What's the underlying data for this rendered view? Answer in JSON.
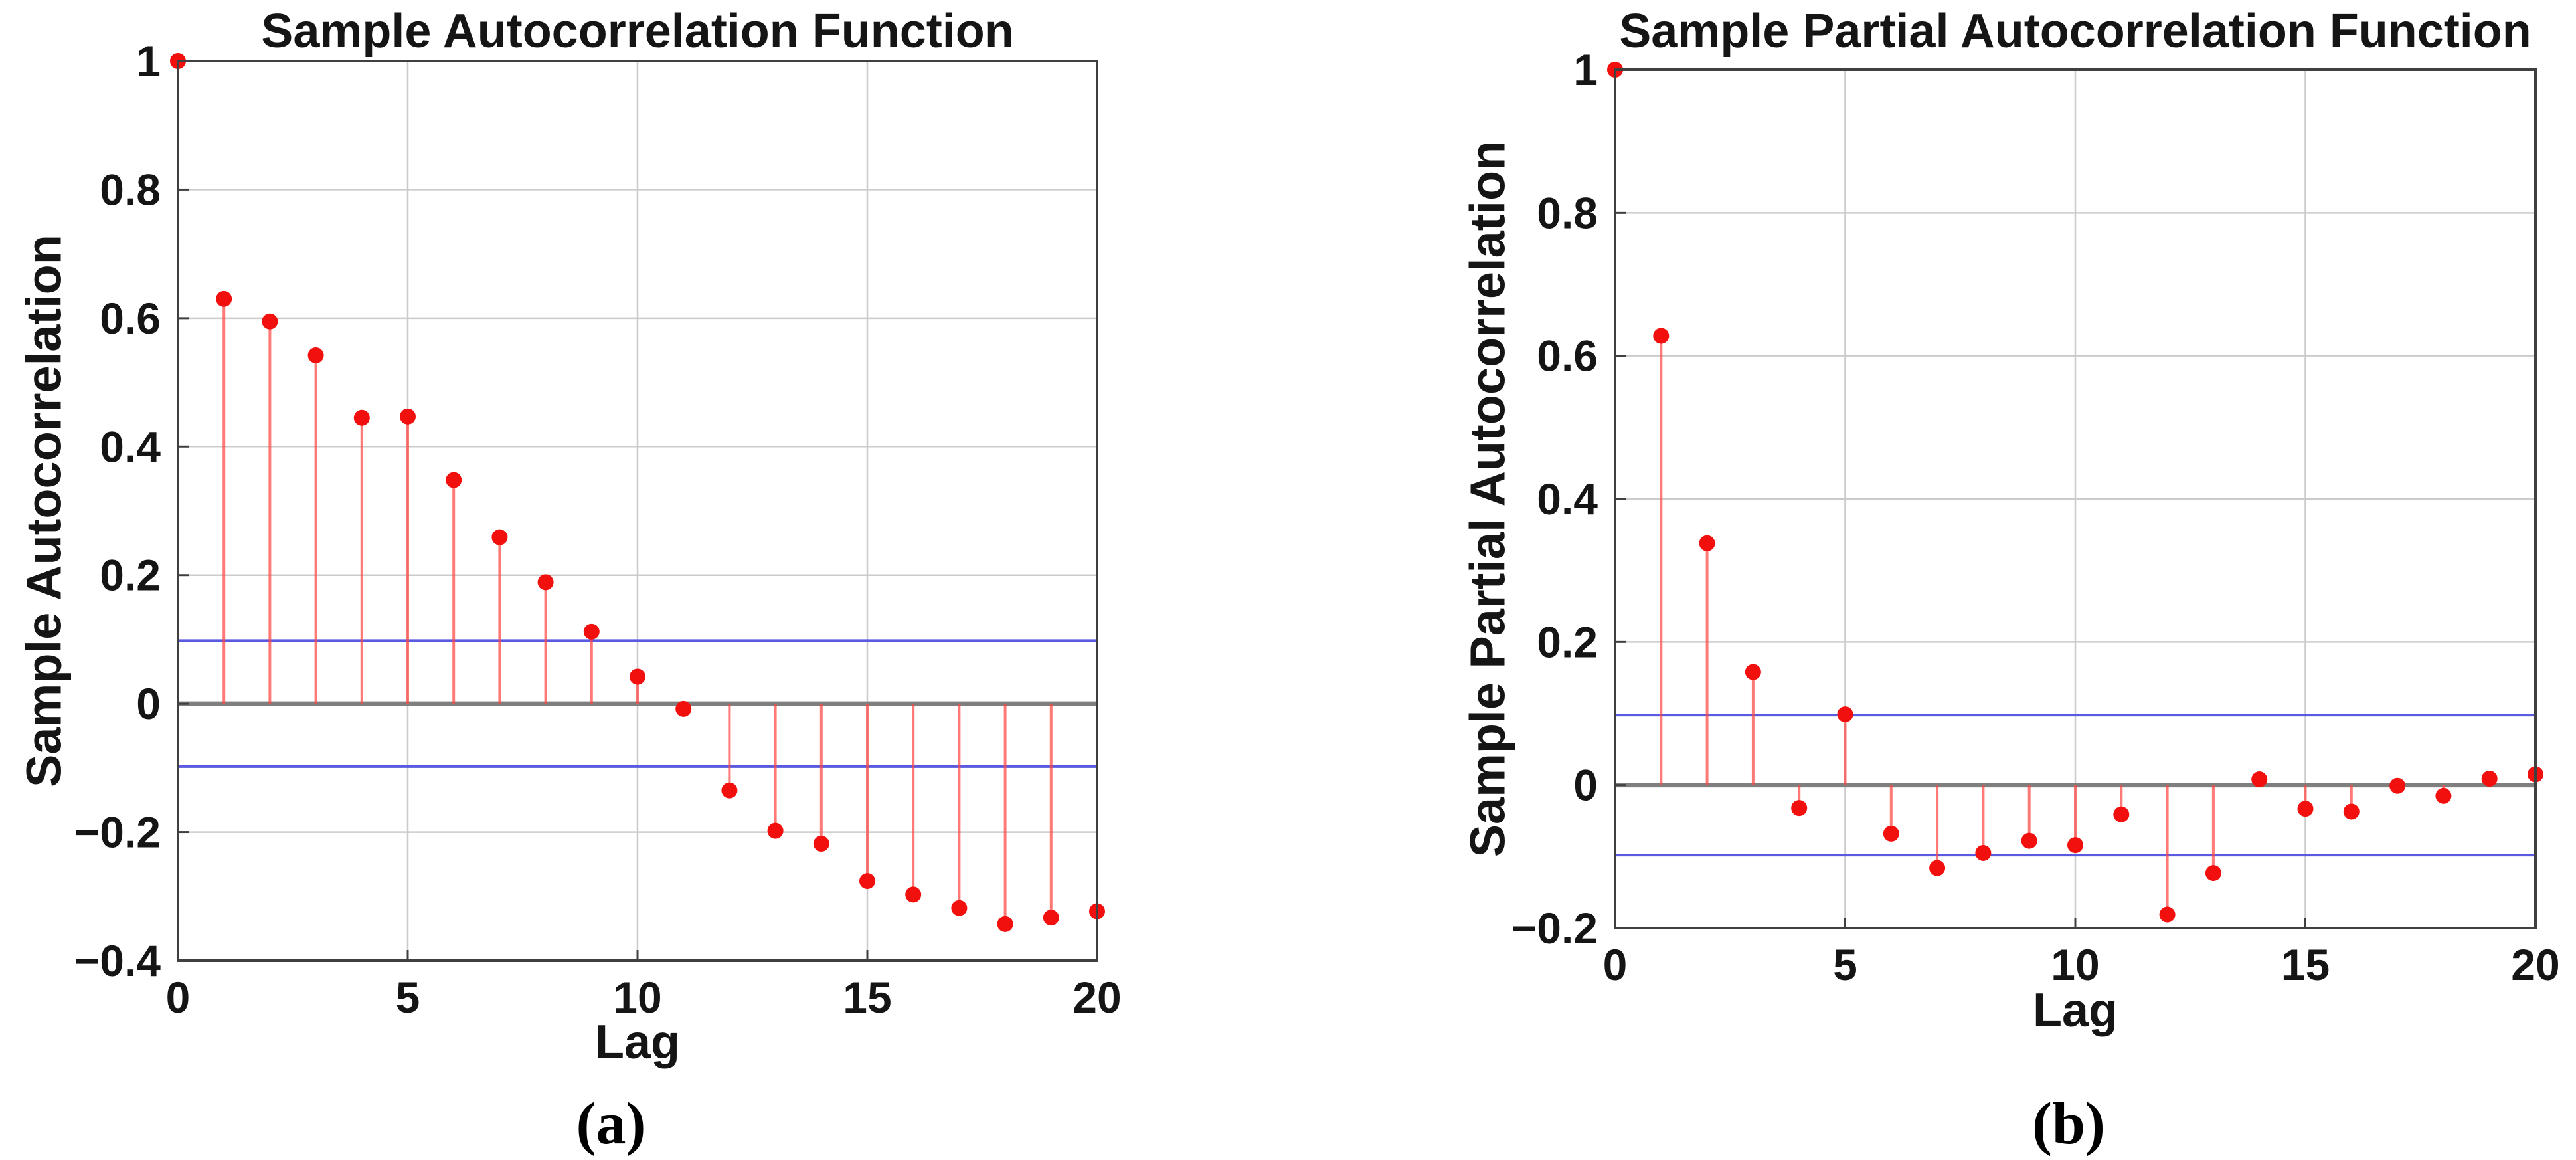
{
  "figure": {
    "background": "#ffffff",
    "panel_count": 2
  },
  "chart_data": [
    {
      "type": "stem",
      "title": "Sample Autocorrelation Function",
      "xlabel": "Lag",
      "ylabel": "Sample Autocorrelation",
      "caption": "(a)",
      "lags": [
        0,
        1,
        2,
        3,
        4,
        5,
        6,
        7,
        8,
        9,
        10,
        11,
        12,
        13,
        14,
        15,
        16,
        17,
        18,
        19,
        20
      ],
      "values": [
        1.0,
        0.63,
        0.595,
        0.542,
        0.445,
        0.447,
        0.348,
        0.259,
        0.189,
        0.112,
        0.042,
        -0.008,
        -0.135,
        -0.198,
        -0.218,
        -0.276,
        -0.297,
        -0.318,
        -0.343,
        -0.333,
        -0.323
      ],
      "confidence_bounds": [
        0.098,
        -0.098
      ],
      "xlim": [
        0,
        20
      ],
      "ylim": [
        -0.4,
        1.0
      ],
      "xticks": [
        0,
        5,
        10,
        15,
        20
      ],
      "xticklabels": [
        "0",
        "5",
        "10",
        "15",
        "20"
      ],
      "yticks": [
        1,
        0.8,
        0.6,
        0.4,
        0.2,
        0,
        -0.2,
        -0.4
      ],
      "yticklabels": [
        "1",
        "0.8",
        "0.6",
        "0.4",
        "0.2",
        "0",
        "−0.2",
        "−0.4"
      ],
      "grid": true,
      "legend": null
    },
    {
      "type": "stem",
      "title": "Sample Partial Autocorrelation Function",
      "xlabel": "Lag",
      "ylabel": "Sample Partial Autocorrelation",
      "caption": "(b)",
      "lags": [
        0,
        1,
        2,
        3,
        4,
        5,
        6,
        7,
        8,
        9,
        10,
        11,
        12,
        13,
        14,
        15,
        16,
        17,
        18,
        19,
        20
      ],
      "values": [
        1.0,
        0.628,
        0.338,
        0.158,
        -0.032,
        0.099,
        -0.068,
        -0.116,
        -0.095,
        -0.078,
        -0.084,
        -0.041,
        -0.181,
        -0.123,
        0.008,
        -0.033,
        -0.037,
        -0.001,
        -0.015,
        0.009,
        0.015
      ],
      "confidence_bounds": [
        0.098,
        -0.098
      ],
      "xlim": [
        0,
        20
      ],
      "ylim": [
        -0.2,
        1.0
      ],
      "xticks": [
        0,
        5,
        10,
        15,
        20
      ],
      "xticklabels": [
        "0",
        "5",
        "10",
        "15",
        "20"
      ],
      "yticks": [
        1,
        0.8,
        0.6,
        0.4,
        0.2,
        0,
        -0.2
      ],
      "yticklabels": [
        "1",
        "0.8",
        "0.6",
        "0.4",
        "0.2",
        "0",
        "−0.2"
      ],
      "grid": true,
      "legend": null
    }
  ],
  "colors": {
    "stem_line": "#ff4642",
    "stem_marker": "#f2100e",
    "confidence_line": "#5a5ae1",
    "zero_line": "#7f7f7f",
    "grid_line": "#cbcbcb",
    "axis_box": "#404040",
    "text": "#151515"
  }
}
